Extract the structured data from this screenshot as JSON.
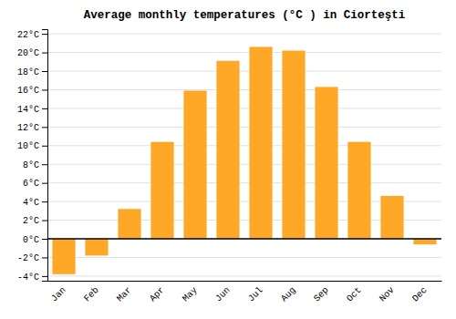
{
  "chart_data": {
    "type": "bar",
    "title": "Average monthly temperatures (°C ) in Ciorteşti",
    "categories": [
      "Jan",
      "Feb",
      "Mar",
      "Apr",
      "May",
      "Jun",
      "Jul",
      "Aug",
      "Sep",
      "Oct",
      "Nov",
      "Dec"
    ],
    "values": [
      -3.8,
      -1.8,
      3.2,
      10.4,
      15.9,
      19.1,
      20.6,
      20.2,
      16.3,
      10.4,
      4.6,
      -0.6
    ],
    "color": "#FFA726",
    "ylim": [
      -4.5,
      22.5
    ],
    "yticks": [
      {
        "value": -4,
        "label": "-4°C"
      },
      {
        "value": -2,
        "label": "-2°C"
      },
      {
        "value": 0,
        "label": "0°C"
      },
      {
        "value": 2,
        "label": "2°C"
      },
      {
        "value": 4,
        "label": "4°C"
      },
      {
        "value": 6,
        "label": "6°C"
      },
      {
        "value": 8,
        "label": "8°C"
      },
      {
        "value": 10,
        "label": "10°C"
      },
      {
        "value": 12,
        "label": "12°C"
      },
      {
        "value": 14,
        "label": "14°C"
      },
      {
        "value": 16,
        "label": "16°C"
      },
      {
        "value": 18,
        "label": "18°C"
      },
      {
        "value": 20,
        "label": "20°C"
      },
      {
        "value": 22,
        "label": "22°C"
      }
    ],
    "grid": true
  }
}
